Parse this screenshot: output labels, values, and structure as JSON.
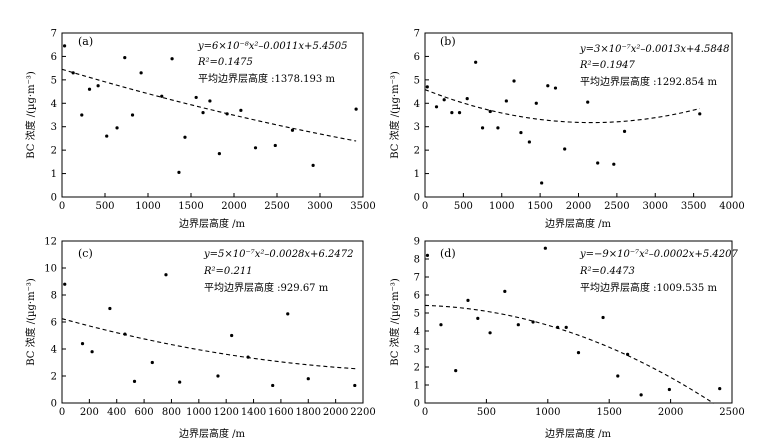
{
  "chart_data": [
    {
      "type": "scatter",
      "panel": "(a)",
      "xlim": [
        0,
        3500
      ],
      "ylim": [
        0,
        7
      ],
      "xticks": [
        0,
        500,
        1000,
        1500,
        2000,
        2500,
        3000,
        3500
      ],
      "yticks": [
        0,
        1,
        2,
        3,
        4,
        5,
        6,
        7
      ],
      "xlabel": "边界层高度 /m",
      "ylabel": "BC 浓度 /(µg·m⁻³)",
      "fit_label": "y=6×10⁻⁸x²–0.0011x+5.4505",
      "r2_label": "R²=0.1475",
      "avg_label": "平均边界层高度 :1378.193 m",
      "fit": {
        "a": 6e-08,
        "b": -0.0011,
        "c": 5.4505,
        "x_range": [
          0,
          3420
        ]
      },
      "points": [
        {
          "x": 30,
          "y": 6.45
        },
        {
          "x": 130,
          "y": 5.3
        },
        {
          "x": 230,
          "y": 3.5
        },
        {
          "x": 320,
          "y": 4.6
        },
        {
          "x": 420,
          "y": 4.75
        },
        {
          "x": 520,
          "y": 2.6
        },
        {
          "x": 640,
          "y": 2.95
        },
        {
          "x": 730,
          "y": 5.95
        },
        {
          "x": 820,
          "y": 3.5
        },
        {
          "x": 920,
          "y": 5.3
        },
        {
          "x": 1160,
          "y": 4.3
        },
        {
          "x": 1280,
          "y": 5.9
        },
        {
          "x": 1360,
          "y": 1.05
        },
        {
          "x": 1430,
          "y": 2.55
        },
        {
          "x": 1560,
          "y": 4.25
        },
        {
          "x": 1640,
          "y": 3.6
        },
        {
          "x": 1720,
          "y": 4.1
        },
        {
          "x": 1830,
          "y": 1.85
        },
        {
          "x": 1920,
          "y": 3.55
        },
        {
          "x": 2080,
          "y": 3.7
        },
        {
          "x": 2250,
          "y": 2.1
        },
        {
          "x": 2480,
          "y": 2.2
        },
        {
          "x": 2680,
          "y": 2.85
        },
        {
          "x": 2920,
          "y": 1.35
        },
        {
          "x": 3420,
          "y": 3.75
        }
      ]
    },
    {
      "type": "scatter",
      "panel": "(b)",
      "xlim": [
        0,
        4000
      ],
      "ylim": [
        0,
        7
      ],
      "xticks": [
        0,
        500,
        1000,
        1500,
        2000,
        2500,
        3000,
        3500,
        4000
      ],
      "yticks": [
        0,
        1,
        2,
        3,
        4,
        5,
        6,
        7
      ],
      "xlabel": "边界层高度 /m",
      "ylabel": "BC 浓度 /(µg·m⁻³)",
      "fit_label": "y=3×10⁻⁷x²–0.0013x+4.5848",
      "r2_label": "R²=0.1947",
      "avg_label": "平均边界层高度 :1292.854 m",
      "fit": {
        "a": 3e-07,
        "b": -0.0013,
        "c": 4.5848,
        "x_range": [
          0,
          3580
        ]
      },
      "points": [
        {
          "x": 30,
          "y": 4.7
        },
        {
          "x": 150,
          "y": 3.85
        },
        {
          "x": 250,
          "y": 4.15
        },
        {
          "x": 350,
          "y": 3.6
        },
        {
          "x": 450,
          "y": 3.6
        },
        {
          "x": 550,
          "y": 4.2
        },
        {
          "x": 660,
          "y": 5.75
        },
        {
          "x": 750,
          "y": 2.95
        },
        {
          "x": 850,
          "y": 3.65
        },
        {
          "x": 950,
          "y": 2.95
        },
        {
          "x": 1060,
          "y": 4.1
        },
        {
          "x": 1160,
          "y": 4.95
        },
        {
          "x": 1250,
          "y": 2.75
        },
        {
          "x": 1360,
          "y": 2.35
        },
        {
          "x": 1450,
          "y": 4.0
        },
        {
          "x": 1520,
          "y": 0.6
        },
        {
          "x": 1600,
          "y": 4.75
        },
        {
          "x": 1700,
          "y": 4.65
        },
        {
          "x": 1820,
          "y": 2.05
        },
        {
          "x": 2120,
          "y": 4.05
        },
        {
          "x": 2250,
          "y": 1.45
        },
        {
          "x": 2460,
          "y": 1.4
        },
        {
          "x": 2600,
          "y": 2.8
        },
        {
          "x": 3580,
          "y": 3.55
        }
      ]
    },
    {
      "type": "scatter",
      "panel": "(c)",
      "xlim": [
        0,
        2200
      ],
      "ylim": [
        0,
        12
      ],
      "xticks": [
        0,
        200,
        400,
        600,
        800,
        1000,
        1200,
        1400,
        1600,
        1800,
        2000,
        2200
      ],
      "yticks": [
        0,
        2,
        4,
        6,
        8,
        10,
        12
      ],
      "xlabel": "边界层高度 /m",
      "ylabel": "BC 浓度 /(µg·m⁻³)",
      "fit_label": "y=5×10⁻⁷x²–0.0028x+6.2472",
      "r2_label": "R²=0.211",
      "avg_label": "平均边界层高度 :929.67 m",
      "fit": {
        "a": 5e-07,
        "b": -0.0028,
        "c": 6.2472,
        "x_range": [
          0,
          2150
        ]
      },
      "points": [
        {
          "x": 20,
          "y": 8.8
        },
        {
          "x": 150,
          "y": 4.4
        },
        {
          "x": 220,
          "y": 3.8
        },
        {
          "x": 350,
          "y": 7.0
        },
        {
          "x": 460,
          "y": 5.1
        },
        {
          "x": 530,
          "y": 1.6
        },
        {
          "x": 660,
          "y": 3.0
        },
        {
          "x": 760,
          "y": 9.5
        },
        {
          "x": 860,
          "y": 1.55
        },
        {
          "x": 1140,
          "y": 2.0
        },
        {
          "x": 1240,
          "y": 5.0
        },
        {
          "x": 1360,
          "y": 3.4
        },
        {
          "x": 1540,
          "y": 1.3
        },
        {
          "x": 1650,
          "y": 6.6
        },
        {
          "x": 1800,
          "y": 1.8
        },
        {
          "x": 2140,
          "y": 1.3
        }
      ]
    },
    {
      "type": "scatter",
      "panel": "(d)",
      "xlim": [
        0,
        2500
      ],
      "ylim": [
        0,
        9
      ],
      "xticks": [
        0,
        500,
        1000,
        1500,
        2000,
        2500
      ],
      "yticks": [
        0,
        1,
        2,
        3,
        4,
        5,
        6,
        7,
        8,
        9
      ],
      "xlabel": "边界层高度 /m",
      "ylabel": "BC 浓度 /(µg·m⁻³)",
      "fit_label": "y=−9×10⁻⁷x²–0.0002x+5.4207",
      "r2_label": "R²=0.4473",
      "avg_label": "平均边界层高度 :1009.535 m",
      "fit": {
        "a": -9e-07,
        "b": -0.0002,
        "c": 5.4207,
        "x_range": [
          0,
          2350
        ]
      },
      "points": [
        {
          "x": 20,
          "y": 8.2
        },
        {
          "x": 130,
          "y": 4.35
        },
        {
          "x": 250,
          "y": 1.8
        },
        {
          "x": 350,
          "y": 5.7
        },
        {
          "x": 430,
          "y": 4.7
        },
        {
          "x": 530,
          "y": 3.9
        },
        {
          "x": 650,
          "y": 6.2
        },
        {
          "x": 760,
          "y": 4.35
        },
        {
          "x": 880,
          "y": 4.5
        },
        {
          "x": 980,
          "y": 8.6
        },
        {
          "x": 1080,
          "y": 4.2
        },
        {
          "x": 1150,
          "y": 4.2
        },
        {
          "x": 1250,
          "y": 2.8
        },
        {
          "x": 1450,
          "y": 4.75
        },
        {
          "x": 1570,
          "y": 1.5
        },
        {
          "x": 1650,
          "y": 2.7
        },
        {
          "x": 1760,
          "y": 0.45
        },
        {
          "x": 1990,
          "y": 0.75
        },
        {
          "x": 2400,
          "y": 0.8
        }
      ]
    }
  ]
}
